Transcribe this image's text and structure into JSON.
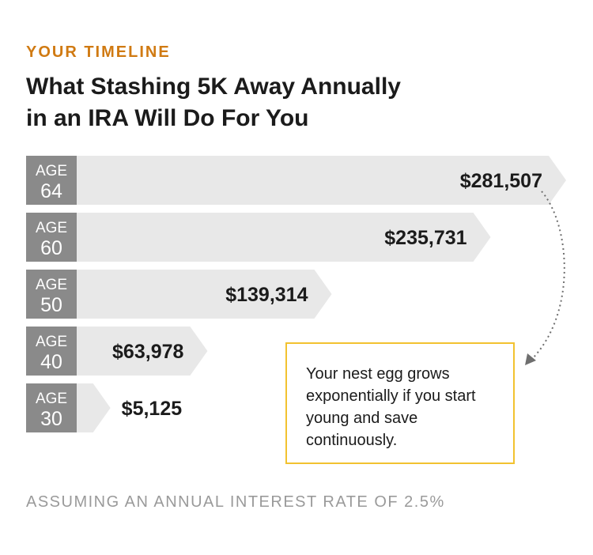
{
  "kicker": "YOUR TIMELINE",
  "title_lines": [
    "What Stashing 5K Away Annually",
    "in an IRA Will Do For You"
  ],
  "callout_text": "Your nest egg grows exponentially if you start young and save continuously.",
  "footnote": "ASSUMING AN ANNUAL INTEREST RATE OF 2.5%",
  "colors": {
    "accent": "#d07a12",
    "bar": "#e8e8e8",
    "age_box": "#8a8a8a",
    "callout_border": "#f2c230",
    "text": "#1b1b1b",
    "footnote": "#9a9a9a"
  },
  "chart_data": {
    "type": "bar",
    "orientation": "horizontal",
    "title": "What Stashing 5K Away Annually in an IRA Will Do For You",
    "series_label_prefix": "AGE",
    "categories": [
      "64",
      "60",
      "50",
      "40",
      "30"
    ],
    "values": [
      281507,
      235731,
      139314,
      63978,
      5125
    ],
    "value_labels": [
      "$281,507",
      "$235,731",
      "$139,314",
      "$63,978",
      "$5,125"
    ],
    "annotation": "Your nest egg grows exponentially if you start young and save continuously.",
    "xlim": [
      0,
      281507
    ],
    "grid": false
  }
}
